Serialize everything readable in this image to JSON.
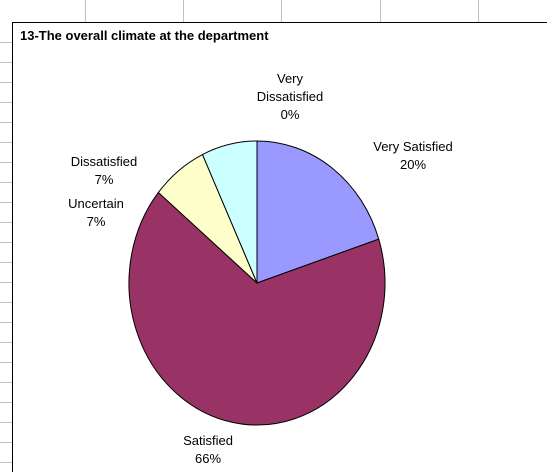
{
  "chart_data": {
    "type": "pie",
    "title": "13-The overall climate at the department",
    "categories": [
      "Very Satisfied",
      "Satisfied",
      "Uncertain",
      "Dissatisfied",
      "Very Dissatisfied"
    ],
    "values": [
      20,
      66,
      7,
      7,
      0
    ],
    "value_labels": [
      "20%",
      "66%",
      "7%",
      "7%",
      "0%"
    ],
    "colors": [
      "#9999ff",
      "#993366",
      "#ffffcc",
      "#ccffff",
      "#ffffff"
    ]
  }
}
